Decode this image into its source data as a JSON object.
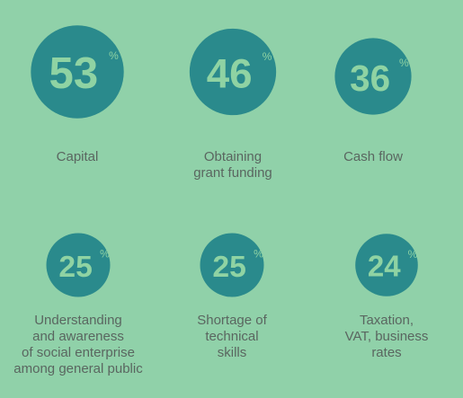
{
  "chart_data": {
    "type": "circles",
    "categories": [
      "Capital",
      "Obtaining\ngrant funding",
      "Cash flow",
      "Understanding\nand awareness\nof social enterprise\namong general public",
      "Shortage of\ntechnical\nskills",
      "Taxation,\nVAT, business\nrates"
    ],
    "values": [
      53,
      46,
      36,
      25,
      25,
      24
    ],
    "unit": "%",
    "color": "#2a8a8c"
  }
}
